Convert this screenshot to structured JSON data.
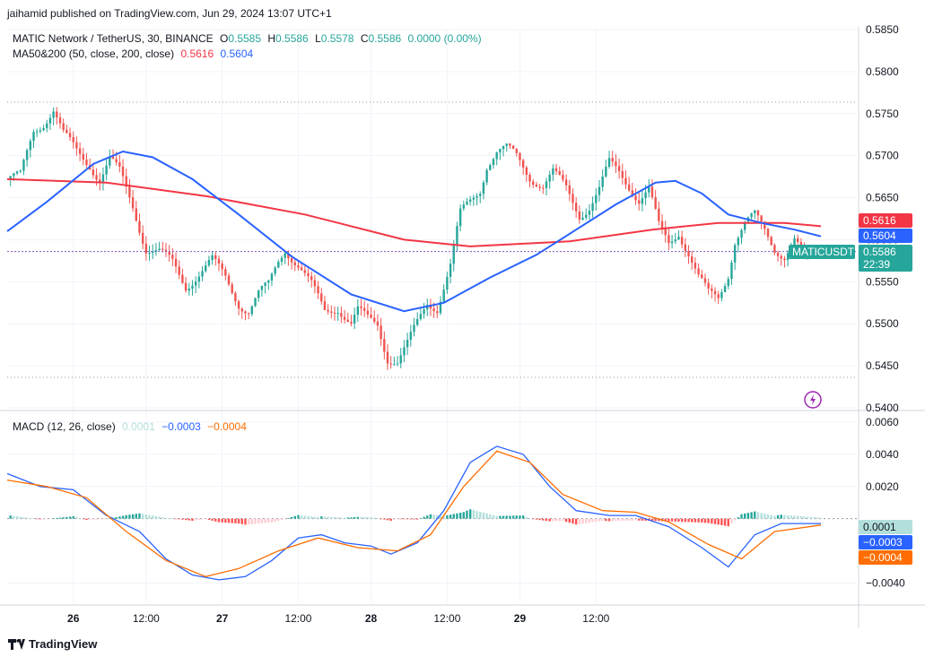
{
  "header": {
    "published": "jaihamid published on TradingView.com, Jun 29, 2024 13:07 UTC+1",
    "symbol_line": "MATIC Network / TetherUS, 30, BINANCE",
    "o_label": "O",
    "o_value": "0.5585",
    "h_label": "H",
    "h_value": "0.5586",
    "l_label": "L",
    "l_value": "0.5578",
    "c_label": "C",
    "c_value": "0.5586",
    "change": "0.0000 (0.00%)",
    "ma_title": "MA50&200 (50, close, 200, close)",
    "ma200_value": "0.5616",
    "ma50_value": "0.5604",
    "macd_title": "MACD (12, 26, close)",
    "macd_hist_value": "0.0001",
    "macd_line_value": "−0.0003",
    "macd_signal_value": "−0.0004"
  },
  "footer": {
    "brand": "TradingView"
  },
  "colors": {
    "up": "#26a69a",
    "down": "#ef5350",
    "ma50": "#2962ff",
    "ma200": "#f23645",
    "macd": "#2962ff",
    "signal": "#ff6d00",
    "hist_up": "#26a69a",
    "hist_up_light": "#b2dfdb",
    "hist_down": "#ff5252",
    "hist_down_light": "#ffcdd2",
    "last_price": "#26a69a",
    "grid": "#f0f3fa"
  },
  "chart_data": [
    {
      "type": "candlestick",
      "title": "MATIC Network / TetherUS, 30, BINANCE",
      "symbol": "MATICUSDT",
      "last_price_label": "0.5586",
      "countdown": "22:39",
      "ma_labels": {
        "ma200": "0.5616",
        "ma50": "0.5604"
      },
      "ylim": [
        0.54,
        0.585
      ],
      "y_ticks": [
        "0.5850",
        "0.5800",
        "0.5750",
        "0.5700",
        "0.5650",
        "0.5600",
        "0.5550",
        "0.5500",
        "0.5450",
        "0.5400"
      ],
      "x_ticks": [
        "26",
        "12:00",
        "27",
        "12:00",
        "28",
        "12:00",
        "29",
        "12:00"
      ],
      "close_path": [
        [
          0,
          0.5672
        ],
        [
          4,
          0.5675
        ],
        [
          8,
          0.573
        ],
        [
          11,
          0.574
        ],
        [
          14,
          0.5755
        ],
        [
          17,
          0.5725
        ],
        [
          21,
          0.5705
        ],
        [
          25,
          0.569
        ],
        [
          28,
          0.5672
        ],
        [
          31,
          0.5695
        ],
        [
          34,
          0.568
        ],
        [
          38,
          0.564
        ],
        [
          42,
          0.559
        ],
        [
          46,
          0.5585
        ],
        [
          50,
          0.5572
        ],
        [
          54,
          0.5545
        ],
        [
          58,
          0.556
        ],
        [
          62,
          0.5575
        ],
        [
          66,
          0.5555
        ],
        [
          70,
          0.5525
        ],
        [
          73,
          0.5515
        ],
        [
          76,
          0.5535
        ],
        [
          79,
          0.5545
        ],
        [
          82,
          0.5575
        ],
        [
          84,
          0.559
        ],
        [
          88,
          0.557
        ],
        [
          92,
          0.5545
        ],
        [
          96,
          0.5515
        ],
        [
          100,
          0.552
        ],
        [
          104,
          0.55
        ],
        [
          106,
          0.5515
        ],
        [
          109,
          0.5505
        ],
        [
          112,
          0.55
        ],
        [
          115,
          0.546
        ],
        [
          118,
          0.5455
        ],
        [
          121,
          0.5475
        ],
        [
          124,
          0.55
        ],
        [
          127,
          0.5525
        ],
        [
          130,
          0.552
        ],
        [
          134,
          0.557
        ],
        [
          137,
          0.563
        ],
        [
          140,
          0.5645
        ],
        [
          143,
          0.566
        ],
        [
          145,
          0.569
        ],
        [
          148,
          0.5705
        ],
        [
          151,
          0.5708
        ],
        [
          154,
          0.5698
        ],
        [
          158,
          0.5675
        ],
        [
          162,
          0.5665
        ],
        [
          165,
          0.568
        ],
        [
          169,
          0.566
        ],
        [
          173,
          0.563
        ],
        [
          176,
          0.564
        ],
        [
          179,
          0.566
        ],
        [
          182,
          0.569
        ],
        [
          185,
          0.568
        ],
        [
          188,
          0.5665
        ],
        [
          191,
          0.5648
        ],
        [
          194,
          0.566
        ],
        [
          197,
          0.5615
        ],
        [
          200,
          0.5595
        ],
        [
          203,
          0.561
        ],
        [
          206,
          0.5585
        ],
        [
          209,
          0.5555
        ],
        [
          212,
          0.5535
        ],
        [
          215,
          0.553
        ],
        [
          218,
          0.556
        ],
        [
          220,
          0.56
        ],
        [
          223,
          0.562
        ],
        [
          226,
          0.5628
        ],
        [
          229,
          0.561
        ],
        [
          232,
          0.559
        ],
        [
          235,
          0.5582
        ],
        [
          238,
          0.56
        ],
        [
          241,
          0.5578
        ],
        [
          244,
          0.5585
        ],
        [
          246,
          0.5586
        ]
      ],
      "ma50_path": [
        [
          0,
          0.561
        ],
        [
          12,
          0.5645
        ],
        [
          26,
          0.569
        ],
        [
          35,
          0.5705
        ],
        [
          44,
          0.5698
        ],
        [
          56,
          0.5672
        ],
        [
          70,
          0.563
        ],
        [
          86,
          0.558
        ],
        [
          104,
          0.5535
        ],
        [
          120,
          0.5515
        ],
        [
          132,
          0.5525
        ],
        [
          146,
          0.5555
        ],
        [
          160,
          0.5582
        ],
        [
          172,
          0.5612
        ],
        [
          184,
          0.5642
        ],
        [
          196,
          0.5668
        ],
        [
          202,
          0.567
        ],
        [
          210,
          0.5655
        ],
        [
          218,
          0.563
        ],
        [
          228,
          0.562
        ],
        [
          238,
          0.5612
        ],
        [
          246,
          0.5604
        ]
      ],
      "ma200_path": [
        [
          0,
          0.5672
        ],
        [
          30,
          0.5668
        ],
        [
          60,
          0.5652
        ],
        [
          90,
          0.563
        ],
        [
          120,
          0.56
        ],
        [
          140,
          0.5592
        ],
        [
          170,
          0.5598
        ],
        [
          195,
          0.5612
        ],
        [
          215,
          0.562
        ],
        [
          235,
          0.562
        ],
        [
          246,
          0.5616
        ]
      ]
    },
    {
      "type": "macd",
      "title": "MACD (12, 26, close)",
      "ylim": [
        -0.0052,
        0.0065
      ],
      "y_ticks": [
        "0.0060",
        "0.0040",
        "0.0020",
        "−0.0040"
      ],
      "labels": {
        "hist": "0.0001",
        "macd": "−0.0003",
        "signal": "−0.0004"
      },
      "macd_path": [
        [
          0,
          0.0028
        ],
        [
          10,
          0.002
        ],
        [
          20,
          0.0018
        ],
        [
          30,
          0.0002
        ],
        [
          40,
          -0.0008
        ],
        [
          48,
          -0.0025
        ],
        [
          56,
          -0.0035
        ],
        [
          64,
          -0.0038
        ],
        [
          72,
          -0.0036
        ],
        [
          80,
          -0.0026
        ],
        [
          88,
          -0.0012
        ],
        [
          95,
          -0.001
        ],
        [
          102,
          -0.0015
        ],
        [
          110,
          -0.0017
        ],
        [
          116,
          -0.0022
        ],
        [
          124,
          -0.0015
        ],
        [
          132,
          0.0005
        ],
        [
          140,
          0.0035
        ],
        [
          148,
          0.0045
        ],
        [
          156,
          0.004
        ],
        [
          164,
          0.002
        ],
        [
          172,
          0.0005
        ],
        [
          182,
          0.0002
        ],
        [
          190,
          0.0002
        ],
        [
          200,
          -0.0005
        ],
        [
          210,
          -0.0018
        ],
        [
          218,
          -0.003
        ],
        [
          226,
          -0.001
        ],
        [
          234,
          -0.0003
        ],
        [
          246,
          -0.0003
        ]
      ],
      "signal_path": [
        [
          0,
          0.0024
        ],
        [
          12,
          0.002
        ],
        [
          24,
          0.0013
        ],
        [
          36,
          -0.0008
        ],
        [
          48,
          -0.0026
        ],
        [
          60,
          -0.0036
        ],
        [
          70,
          -0.0031
        ],
        [
          82,
          -0.002
        ],
        [
          94,
          -0.0012
        ],
        [
          106,
          -0.0018
        ],
        [
          118,
          -0.002
        ],
        [
          128,
          -0.001
        ],
        [
          138,
          0.002
        ],
        [
          148,
          0.0042
        ],
        [
          158,
          0.0035
        ],
        [
          168,
          0.0015
        ],
        [
          180,
          0.0005
        ],
        [
          190,
          0.0004
        ],
        [
          200,
          -0.0002
        ],
        [
          212,
          -0.0016
        ],
        [
          222,
          -0.0025
        ],
        [
          232,
          -0.0008
        ],
        [
          246,
          -0.0004
        ]
      ]
    }
  ]
}
